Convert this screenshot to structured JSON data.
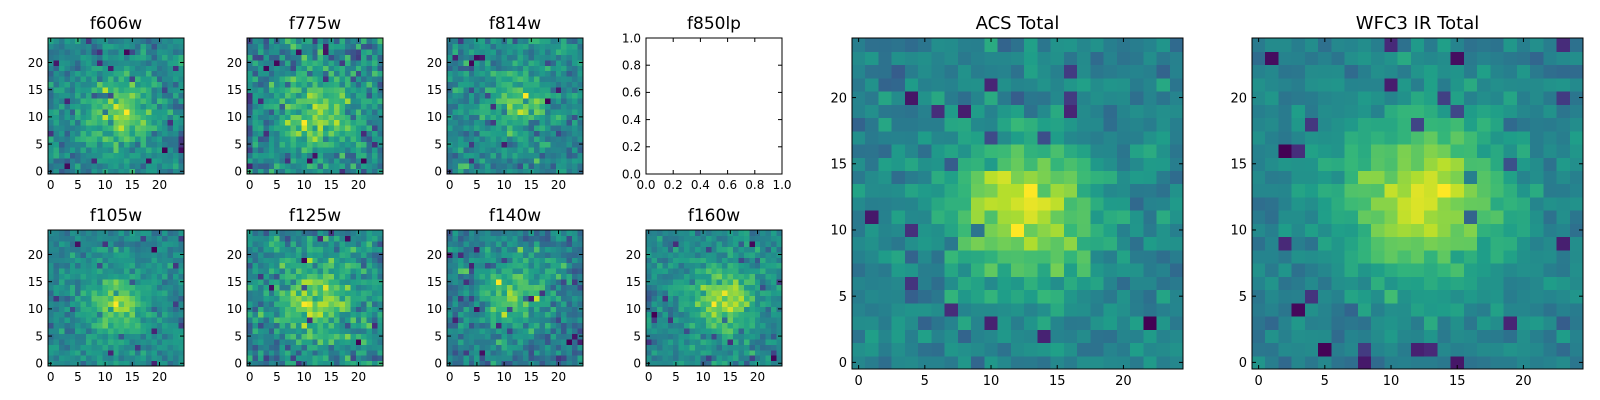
{
  "chart_data": [
    {
      "type": "heatmap",
      "title": "f606w",
      "xticks": [
        "0",
        "5",
        "10",
        "15",
        "20"
      ],
      "yticks": [
        "0",
        "5",
        "10",
        "15",
        "20"
      ],
      "xlim": [
        -0.5,
        24.5
      ],
      "ylim": [
        -0.5,
        24.5
      ],
      "center": [
        12.5,
        10.5
      ],
      "sigma": 4.2,
      "peak": 0.55,
      "noise": 0.45,
      "seed": 11
    },
    {
      "type": "heatmap",
      "title": "f775w",
      "xticks": [
        "0",
        "5",
        "10",
        "15",
        "20"
      ],
      "yticks": [
        "0",
        "5",
        "10",
        "15",
        "20"
      ],
      "xlim": [
        -0.5,
        24.5
      ],
      "ylim": [
        -0.5,
        24.5
      ],
      "center": [
        12.5,
        11.0
      ],
      "sigma": 5.5,
      "peak": 0.45,
      "noise": 0.55,
      "seed": 23
    },
    {
      "type": "heatmap",
      "title": "f814w",
      "xticks": [
        "0",
        "5",
        "10",
        "15",
        "20"
      ],
      "yticks": [
        "0",
        "5",
        "10",
        "15",
        "20"
      ],
      "xlim": [
        -0.5,
        24.5
      ],
      "ylim": [
        -0.5,
        24.5
      ],
      "center": [
        12.5,
        12.5
      ],
      "sigma": 3.6,
      "peak": 0.5,
      "noise": 0.5,
      "seed": 37
    },
    {
      "type": "empty",
      "title": "f850lp",
      "xticks": [
        "0.0",
        "0.2",
        "0.4",
        "0.6",
        "0.8",
        "1.0"
      ],
      "yticks": [
        "0.0",
        "0.2",
        "0.4",
        "0.6",
        "0.8",
        "1.0"
      ],
      "xlim": [
        0,
        1
      ],
      "ylim": [
        0,
        1
      ]
    },
    {
      "type": "heatmap",
      "title": "f105w",
      "xticks": [
        "0",
        "5",
        "10",
        "15",
        "20"
      ],
      "yticks": [
        "0",
        "5",
        "10",
        "15",
        "20"
      ],
      "xlim": [
        -0.5,
        24.5
      ],
      "ylim": [
        -0.5,
        24.5
      ],
      "center": [
        12.0,
        11.0
      ],
      "sigma": 3.8,
      "peak": 0.6,
      "noise": 0.38,
      "seed": 53
    },
    {
      "type": "heatmap",
      "title": "f125w",
      "xticks": [
        "0",
        "5",
        "10",
        "15",
        "20"
      ],
      "yticks": [
        "0",
        "5",
        "10",
        "15",
        "20"
      ],
      "xlim": [
        -0.5,
        24.5
      ],
      "ylim": [
        -0.5,
        24.5
      ],
      "center": [
        12.5,
        12.0
      ],
      "sigma": 5.0,
      "peak": 0.45,
      "noise": 0.5,
      "seed": 67
    },
    {
      "type": "heatmap",
      "title": "f140w",
      "xticks": [
        "0",
        "5",
        "10",
        "15",
        "20"
      ],
      "yticks": [
        "0",
        "5",
        "10",
        "15",
        "20"
      ],
      "xlim": [
        -0.5,
        24.5
      ],
      "ylim": [
        -0.5,
        24.5
      ],
      "center": [
        11.5,
        13.0
      ],
      "sigma": 4.8,
      "peak": 0.45,
      "noise": 0.5,
      "seed": 71
    },
    {
      "type": "heatmap",
      "title": "f160w",
      "xticks": [
        "0",
        "5",
        "10",
        "15",
        "20"
      ],
      "yticks": [
        "0",
        "5",
        "10",
        "15",
        "20"
      ],
      "xlim": [
        -0.5,
        24.5
      ],
      "ylim": [
        -0.5,
        24.5
      ],
      "center": [
        13.5,
        12.0
      ],
      "sigma": 4.2,
      "peak": 0.6,
      "noise": 0.42,
      "seed": 89
    },
    {
      "type": "heatmap",
      "title": "ACS Total",
      "xticks": [
        "0",
        "5",
        "10",
        "15",
        "20"
      ],
      "yticks": [
        "0",
        "5",
        "10",
        "15",
        "20"
      ],
      "xlim": [
        -0.5,
        24.5
      ],
      "ylim": [
        -0.5,
        24.5
      ],
      "center": [
        12.5,
        11.5
      ],
      "sigma": 3.9,
      "peak": 0.62,
      "noise": 0.3,
      "seed": 97
    },
    {
      "type": "heatmap",
      "title": "WFC3 IR Total",
      "xticks": [
        "0",
        "5",
        "10",
        "15",
        "20"
      ],
      "yticks": [
        "0",
        "5",
        "10",
        "15",
        "20"
      ],
      "xlim": [
        -0.5,
        24.5
      ],
      "ylim": [
        -0.5,
        24.5
      ],
      "center": [
        12.5,
        12.5
      ],
      "sigma": 4.6,
      "peak": 0.68,
      "noise": 0.25,
      "seed": 131
    }
  ]
}
